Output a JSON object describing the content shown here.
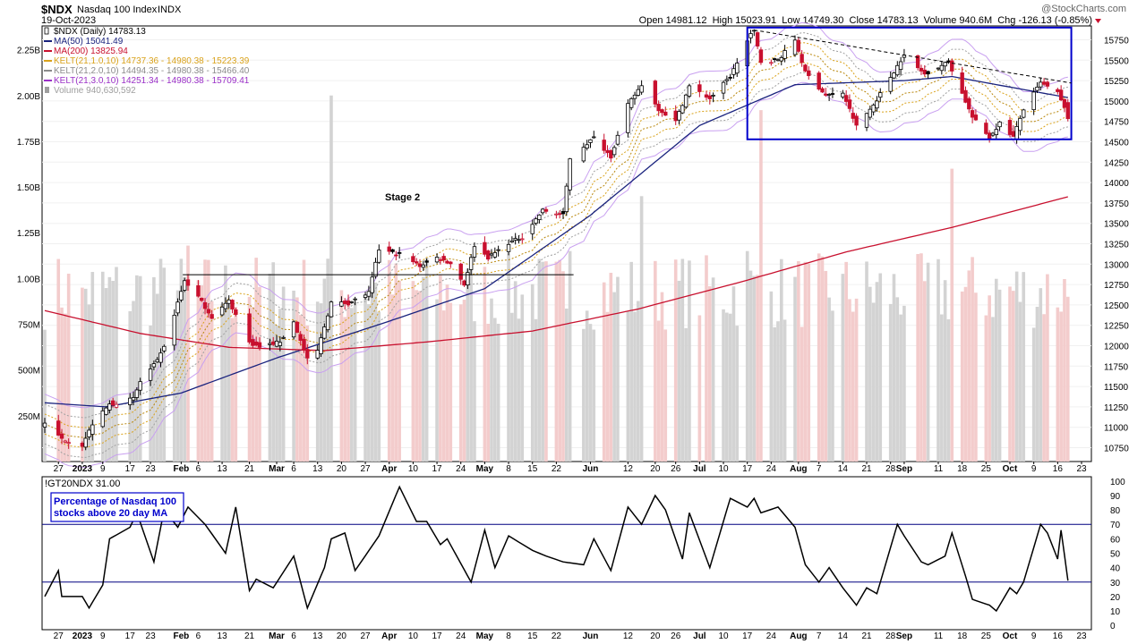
{
  "header": {
    "symbol": "$NDX",
    "name": "Nasdaq 100 Index",
    "exchange": "INDX",
    "date": "19-Oct-2023",
    "watermark": "@StockCharts.com",
    "quote": "Open 14981.12  High 15023.91  Low 14749.30  Close 14783.13  Volume 940.6M  Chg -126.13 (-0.85%)"
  },
  "legend": [
    {
      "text": "$NDX (Daily) 14783.13",
      "color": "#000000",
      "icon": "candle-icon"
    },
    {
      "text": "MA(50) 15041.49",
      "color": "#1a237e",
      "icon": "line-icon"
    },
    {
      "text": "MA(200) 13825.94",
      "color": "#c8102e",
      "icon": "line-icon"
    },
    {
      "text": "KELT(21,1.0,10) 14737.36 - 14980.38 - 15223.39",
      "color": "#d9a21b",
      "icon": "line-icon"
    },
    {
      "text": "KELT(21,2.0,10) 14494.35 - 14980.38 - 15466.40",
      "color": "#8c8c8c",
      "icon": "line-icon"
    },
    {
      "text": "KELT(21,3.0,10) 14251.34 - 14980.38 - 15709.41",
      "color": "#9b30c8",
      "icon": "line-icon"
    },
    {
      "text": "Volume 940,630,592",
      "color": "#9e9e9e",
      "icon": "bar-icon"
    }
  ],
  "annotations": {
    "stage": "Stage 2",
    "breadth_box": [
      "Percentage of Nasdaq 100",
      "stocks above 20 day MA"
    ]
  },
  "lower_title": "!GT20NDX 31.00",
  "colors": {
    "up": "#000000",
    "down": "#c8102e",
    "ma50": "#1a237e",
    "ma200": "#c8102e",
    "kelt1": "#d9a21b",
    "kelt2": "#a0a0a0",
    "kelt3": "#9b30c8",
    "vol_up": "#d3d3d3",
    "vol_down": "#f3cccc",
    "box": "#0000cc",
    "ref_lines": "#000080"
  },
  "x_labels": [
    "27",
    "2023",
    "9",
    "17",
    "23",
    "Feb",
    "6",
    "13",
    "21",
    "Mar",
    "6",
    "13",
    "20",
    "27",
    "Apr",
    "10",
    "17",
    "24",
    "May",
    "8",
    "15",
    "22",
    "Jun",
    "12",
    "20",
    "26",
    "Jul",
    "10",
    "17",
    "24",
    "Aug",
    "7",
    "14",
    "21",
    "28",
    "Sep",
    "11",
    "18",
    "25",
    "Oct",
    "9",
    "16",
    "23"
  ],
  "chart_data": [
    {
      "type": "candlestick",
      "title": "$NDX Nasdaq 100 Index INDX",
      "x_start": "2022-12-23",
      "x_end": "2023-10-19",
      "y_ticks": [
        10750,
        11000,
        11250,
        11500,
        11750,
        12000,
        12250,
        12500,
        12750,
        13000,
        13250,
        13500,
        13750,
        14000,
        14250,
        14500,
        14750,
        15000,
        15250,
        15500,
        15750
      ],
      "ylim": [
        10580,
        15920
      ],
      "volume_ticks": [
        "250M",
        "500M",
        "750M",
        "1.00B",
        "1.25B",
        "1.50B",
        "1.75B",
        "2.00B",
        "2.25B"
      ],
      "volume_range_B": [
        0,
        2.38
      ],
      "close_anchors": [
        [
          "2022-12-23",
          11040
        ],
        [
          "2022-12-28",
          10860
        ],
        [
          "2023-01-03",
          10780
        ],
        [
          "2023-01-06",
          11040
        ],
        [
          "2023-01-11",
          11280
        ],
        [
          "2023-01-18",
          11350
        ],
        [
          "2023-01-20",
          11560
        ],
        [
          "2023-01-25",
          11810
        ],
        [
          "2023-01-27",
          11980
        ],
        [
          "2023-02-02",
          12800
        ],
        [
          "2023-02-06",
          12600
        ],
        [
          "2023-02-10",
          12350
        ],
        [
          "2023-02-15",
          12550
        ],
        [
          "2023-02-21",
          12040
        ],
        [
          "2023-02-24",
          11980
        ],
        [
          "2023-03-02",
          12050
        ],
        [
          "2023-03-06",
          12290
        ],
        [
          "2023-03-10",
          11830
        ],
        [
          "2023-03-13",
          11940
        ],
        [
          "2023-03-17",
          12530
        ],
        [
          "2023-03-22",
          12520
        ],
        [
          "2023-03-28",
          12650
        ],
        [
          "2023-03-31",
          13180
        ],
        [
          "2023-04-06",
          13120
        ],
        [
          "2023-04-12",
          12980
        ],
        [
          "2023-04-17",
          13080
        ],
        [
          "2023-04-21",
          13010
        ],
        [
          "2023-04-25",
          12750
        ],
        [
          "2023-04-28",
          13230
        ],
        [
          "2023-05-02",
          13080
        ],
        [
          "2023-05-08",
          13260
        ],
        [
          "2023-05-12",
          13330
        ],
        [
          "2023-05-18",
          13660
        ],
        [
          "2023-05-24",
          13600
        ],
        [
          "2023-05-26",
          14300
        ],
        [
          "2023-06-02",
          14550
        ],
        [
          "2023-06-07",
          14320
        ],
        [
          "2023-06-12",
          14950
        ],
        [
          "2023-06-16",
          15200
        ],
        [
          "2023-06-21",
          14900
        ],
        [
          "2023-06-26",
          14750
        ],
        [
          "2023-06-30",
          15180
        ],
        [
          "2023-07-06",
          15030
        ],
        [
          "2023-07-12",
          15300
        ],
        [
          "2023-07-18",
          15820
        ],
        [
          "2023-07-19",
          15850
        ],
        [
          "2023-07-21",
          15480
        ],
        [
          "2023-07-26",
          15500
        ],
        [
          "2023-07-31",
          15750
        ],
        [
          "2023-08-03",
          15350
        ],
        [
          "2023-08-09",
          15070
        ],
        [
          "2023-08-14",
          15100
        ],
        [
          "2023-08-18",
          14690
        ],
        [
          "2023-08-23",
          14950
        ],
        [
          "2023-08-31",
          15500
        ],
        [
          "2023-09-01",
          15550
        ],
        [
          "2023-09-07",
          15330
        ],
        [
          "2023-09-14",
          15480
        ],
        [
          "2023-09-21",
          14800
        ],
        [
          "2023-09-26",
          14550
        ],
        [
          "2023-09-29",
          14730
        ],
        [
          "2023-10-03",
          14560
        ],
        [
          "2023-10-06",
          14900
        ],
        [
          "2023-10-11",
          15220
        ],
        [
          "2023-10-16",
          15100
        ],
        [
          "2023-10-18",
          14909
        ],
        [
          "2023-10-19",
          14783
        ]
      ],
      "last_bar": {
        "date": "2023-10-19",
        "open": 14981.12,
        "high": 15023.91,
        "low": 14749.3,
        "close": 14783.13,
        "volume": 940630592
      },
      "series": [
        {
          "name": "MA(50)",
          "anchors": [
            [
              "2022-12-23",
              11300
            ],
            [
              "2023-01-10",
              11250
            ],
            [
              "2023-02-01",
              11420
            ],
            [
              "2023-03-01",
              11850
            ],
            [
              "2023-04-03",
              12300
            ],
            [
              "2023-05-01",
              12700
            ],
            [
              "2023-06-01",
              13600
            ],
            [
              "2023-07-03",
              14700
            ],
            [
              "2023-07-31",
              15200
            ],
            [
              "2023-09-01",
              15250
            ],
            [
              "2023-09-15",
              15300
            ],
            [
              "2023-10-19",
              15041.49
            ]
          ]
        },
        {
          "name": "MA(200)",
          "anchors": [
            [
              "2022-12-23",
              12430
            ],
            [
              "2023-01-20",
              12150
            ],
            [
              "2023-02-15",
              11980
            ],
            [
              "2023-03-15",
              11940
            ],
            [
              "2023-04-15",
              12050
            ],
            [
              "2023-05-15",
              12180
            ],
            [
              "2023-06-15",
              12450
            ],
            [
              "2023-07-15",
              12780
            ],
            [
              "2023-08-15",
              13150
            ],
            [
              "2023-09-15",
              13450
            ],
            [
              "2023-10-19",
              13825.94
            ]
          ]
        },
        {
          "name": "KELT(21,1.0,10)",
          "values_at_last": [
            14737.36,
            14980.38,
            15223.39
          ]
        },
        {
          "name": "KELT(21,2.0,10)",
          "values_at_last": [
            14494.35,
            14980.38,
            15466.4
          ]
        },
        {
          "name": "KELT(21,3.0,10)",
          "values_at_last": [
            14251.34,
            14980.38,
            15709.41
          ]
        }
      ],
      "annotations": {
        "stage2_base_line": {
          "from": "2023-02-02",
          "to": "2023-05-26",
          "y": 12870
        },
        "box": {
          "from": "2023-07-17",
          "to": "2023-10-20",
          "y_top": 15900,
          "y_bottom": 14530
        },
        "downtrend_line": {
          "from": "2023-07-19",
          "y_from": 15870,
          "to": "2023-10-20",
          "y_to": 15220
        }
      }
    },
    {
      "type": "line",
      "title": "!GT20NDX 31.00",
      "ylabel": "Percentage of Nasdaq 100 stocks above 20 day MA",
      "y_ticks": [
        0,
        10,
        20,
        30,
        40,
        50,
        60,
        70,
        80,
        90,
        100
      ],
      "ylim": [
        -3,
        103
      ],
      "reference_lines": [
        70,
        30
      ],
      "anchors": [
        [
          "2022-12-23",
          20
        ],
        [
          "2022-12-27",
          38
        ],
        [
          "2022-12-28",
          20
        ],
        [
          "2023-01-03",
          20
        ],
        [
          "2023-01-05",
          12
        ],
        [
          "2023-01-09",
          28
        ],
        [
          "2023-01-11",
          60
        ],
        [
          "2023-01-17",
          68
        ],
        [
          "2023-01-19",
          78
        ],
        [
          "2023-01-24",
          44
        ],
        [
          "2023-01-27",
          80
        ],
        [
          "2023-01-31",
          68
        ],
        [
          "2023-02-03",
          82
        ],
        [
          "2023-02-08",
          70
        ],
        [
          "2023-02-14",
          50
        ],
        [
          "2023-02-17",
          82
        ],
        [
          "2023-02-21",
          24
        ],
        [
          "2023-02-23",
          32
        ],
        [
          "2023-02-28",
          26
        ],
        [
          "2023-03-06",
          48
        ],
        [
          "2023-03-10",
          12
        ],
        [
          "2023-03-15",
          40
        ],
        [
          "2023-03-17",
          60
        ],
        [
          "2023-03-21",
          64
        ],
        [
          "2023-03-24",
          38
        ],
        [
          "2023-03-31",
          62
        ],
        [
          "2023-04-06",
          96
        ],
        [
          "2023-04-11",
          72
        ],
        [
          "2023-04-14",
          72
        ],
        [
          "2023-04-18",
          56
        ],
        [
          "2023-04-20",
          60
        ],
        [
          "2023-04-27",
          30
        ],
        [
          "2023-05-01",
          66
        ],
        [
          "2023-05-04",
          40
        ],
        [
          "2023-05-08",
          62
        ],
        [
          "2023-05-15",
          52
        ],
        [
          "2023-05-19",
          48
        ],
        [
          "2023-05-24",
          44
        ],
        [
          "2023-05-30",
          42
        ],
        [
          "2023-06-02",
          60
        ],
        [
          "2023-06-07",
          38
        ],
        [
          "2023-06-12",
          82
        ],
        [
          "2023-06-16",
          70
        ],
        [
          "2023-06-20",
          90
        ],
        [
          "2023-06-23",
          80
        ],
        [
          "2023-06-28",
          46
        ],
        [
          "2023-06-30",
          78
        ],
        [
          "2023-07-06",
          40
        ],
        [
          "2023-07-12",
          88
        ],
        [
          "2023-07-17",
          82
        ],
        [
          "2023-07-19",
          88
        ],
        [
          "2023-07-21",
          78
        ],
        [
          "2023-07-26",
          82
        ],
        [
          "2023-07-31",
          68
        ],
        [
          "2023-08-03",
          42
        ],
        [
          "2023-08-07",
          30
        ],
        [
          "2023-08-10",
          40
        ],
        [
          "2023-08-14",
          26
        ],
        [
          "2023-08-18",
          14
        ],
        [
          "2023-08-21",
          26
        ],
        [
          "2023-08-24",
          22
        ],
        [
          "2023-08-30",
          70
        ],
        [
          "2023-09-01",
          62
        ],
        [
          "2023-09-06",
          44
        ],
        [
          "2023-09-08",
          42
        ],
        [
          "2023-09-13",
          48
        ],
        [
          "2023-09-15",
          64
        ],
        [
          "2023-09-19",
          34
        ],
        [
          "2023-09-21",
          18
        ],
        [
          "2023-09-26",
          14
        ],
        [
          "2023-09-28",
          10
        ],
        [
          "2023-10-02",
          26
        ],
        [
          "2023-10-04",
          22
        ],
        [
          "2023-10-06",
          30
        ],
        [
          "2023-10-11",
          70
        ],
        [
          "2023-10-13",
          64
        ],
        [
          "2023-10-16",
          46
        ],
        [
          "2023-10-17",
          66
        ],
        [
          "2023-10-19",
          31
        ]
      ]
    }
  ]
}
